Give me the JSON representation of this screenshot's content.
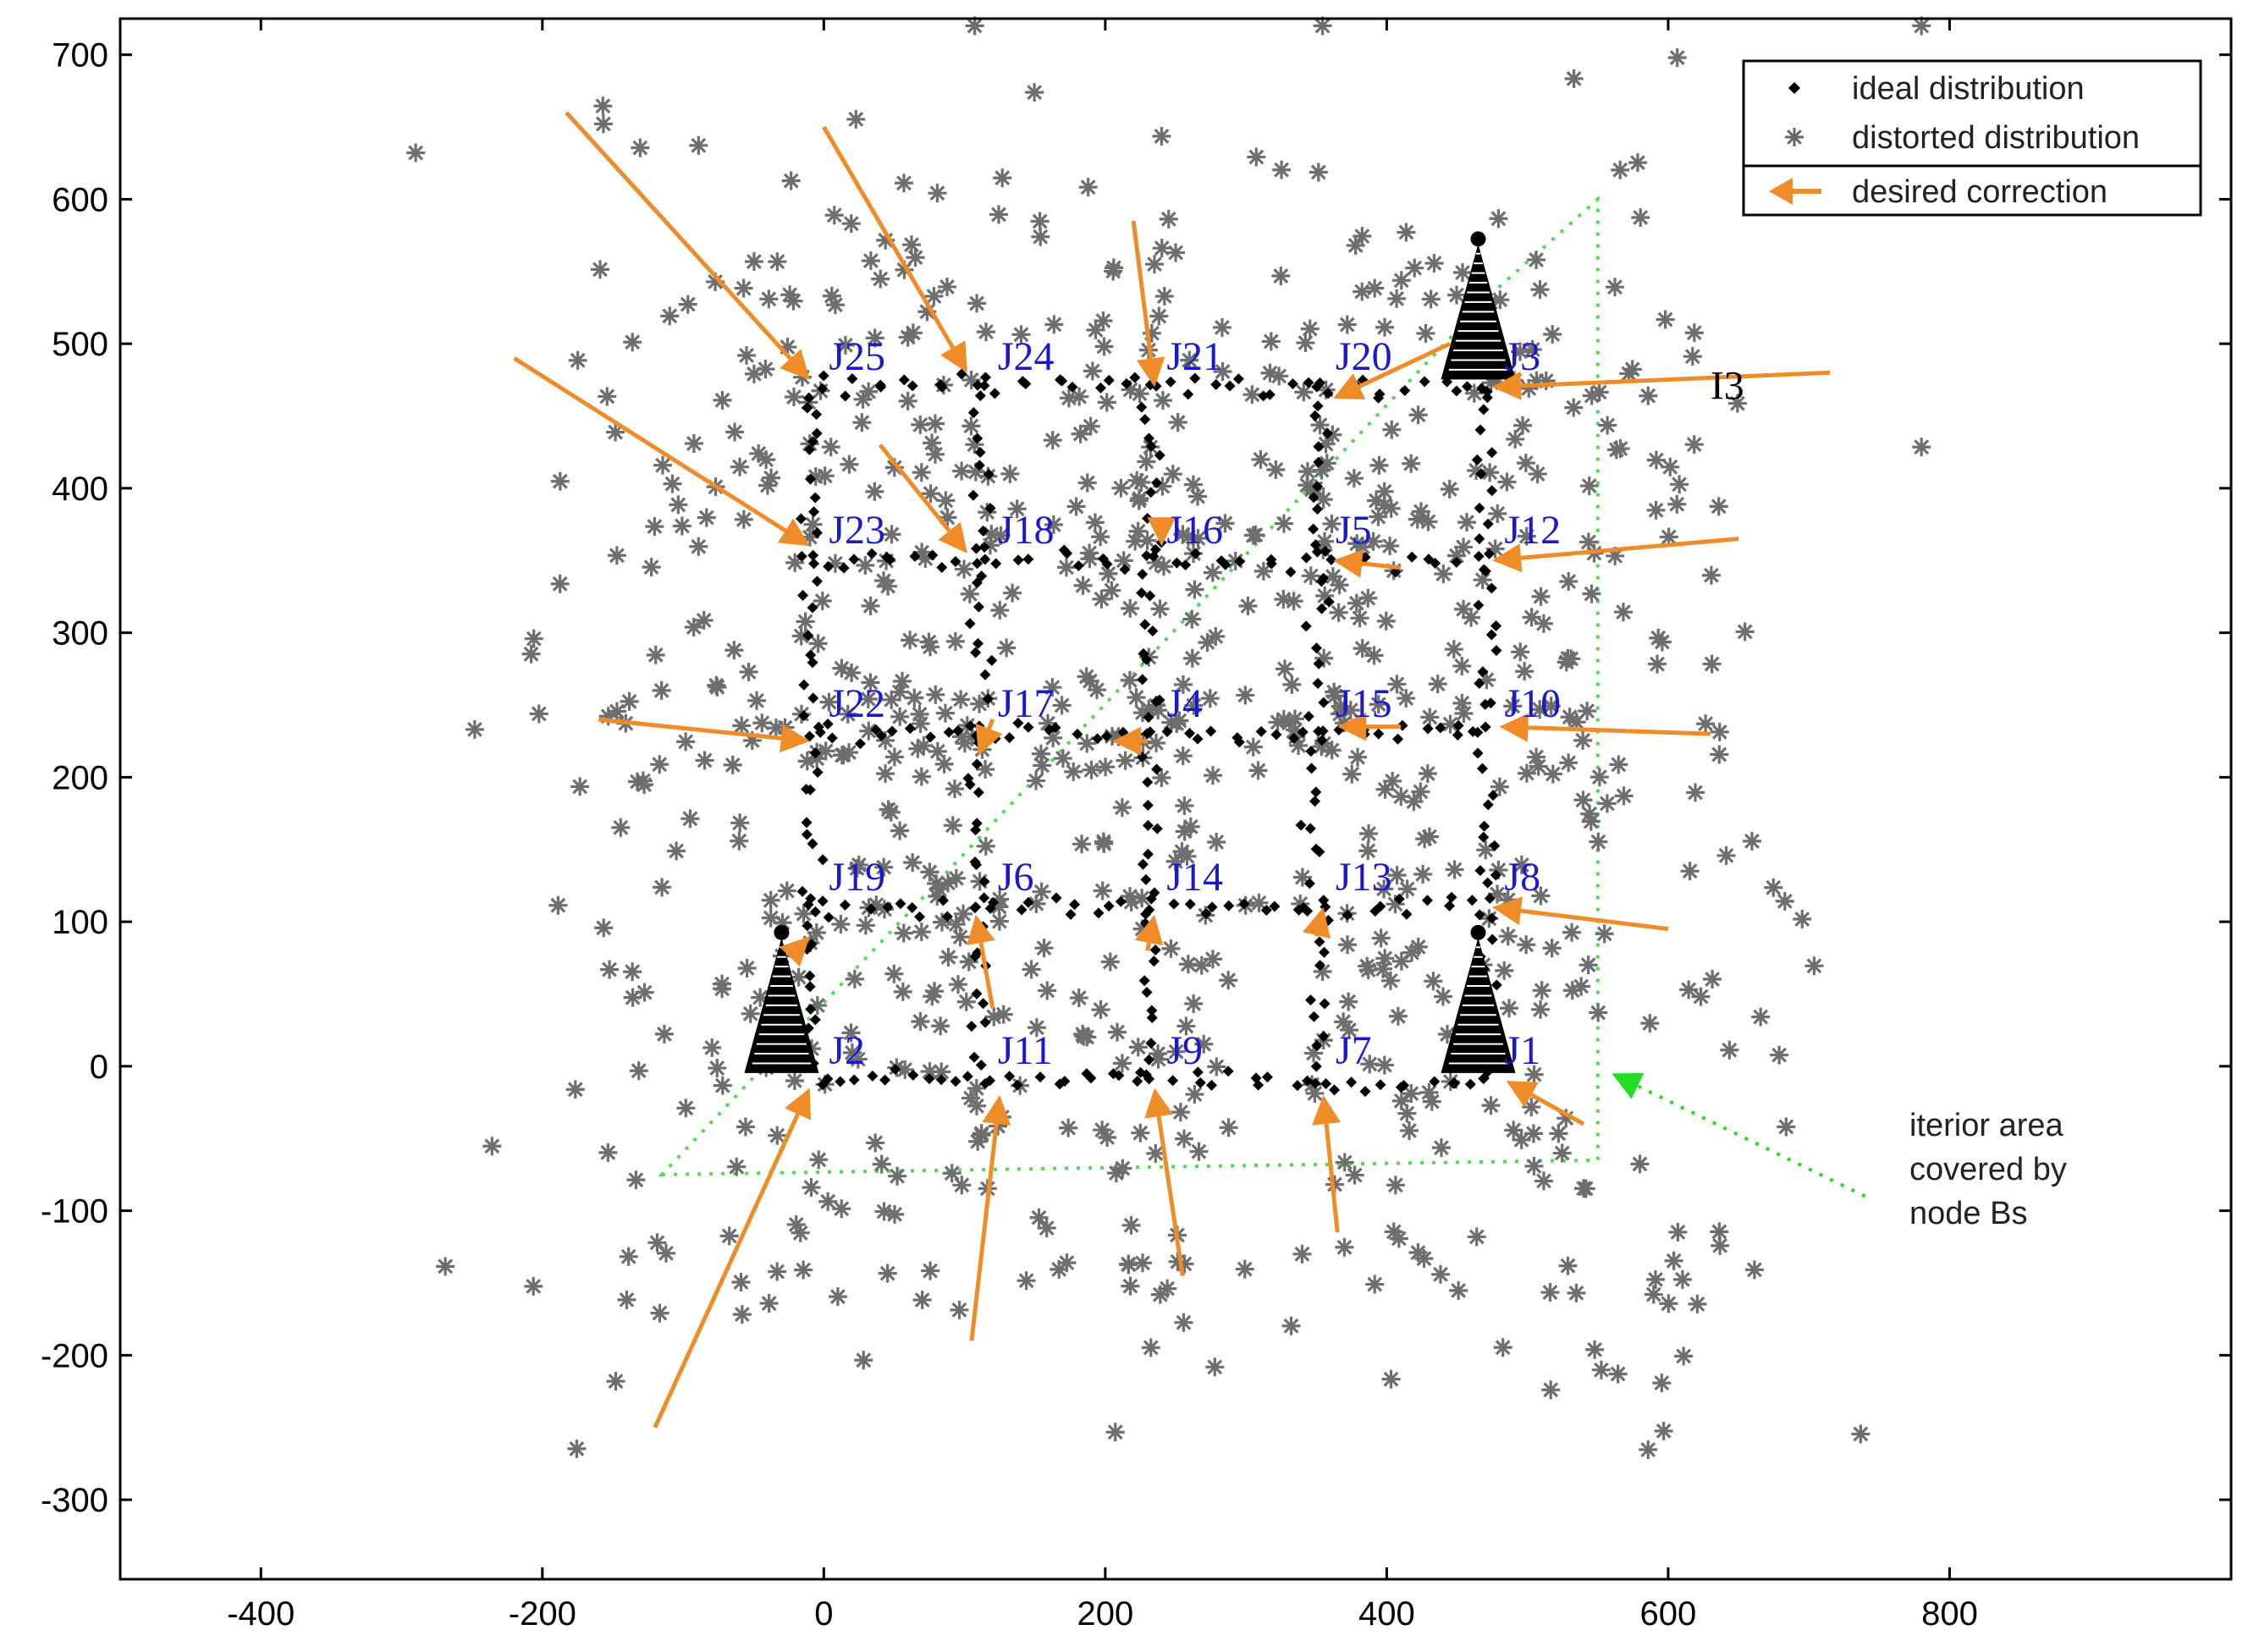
{
  "chart_data": {
    "type": "scatter",
    "title": "",
    "xlabel": "",
    "ylabel": "",
    "xlim": [
      -500,
      1000
    ],
    "ylim": [
      -355,
      725
    ],
    "x_ticks": [
      -400,
      -200,
      0,
      200,
      400,
      600,
      800
    ],
    "y_ticks": [
      -300,
      -200,
      -100,
      0,
      100,
      200,
      300,
      400,
      500,
      600,
      700
    ],
    "grid": false,
    "legend": {
      "placement": "top-right",
      "entries": [
        {
          "label": "ideal distribution",
          "marker": "diamond",
          "color": "#000000"
        },
        {
          "label": "distorted distribution",
          "marker": "asterisk",
          "color": "#666666"
        },
        {
          "label": "desired correction",
          "marker": "arrow",
          "color": "#f08c28"
        }
      ]
    },
    "ideal_grid": {
      "x_lines": [
        -10,
        110,
        230,
        350,
        470
      ],
      "y_lines": [
        -10,
        110,
        230,
        350,
        470
      ],
      "x_range": [
        -10,
        470
      ],
      "y_range": [
        -10,
        470
      ]
    },
    "towers": [
      {
        "x": -30,
        "y": 0
      },
      {
        "x": 465,
        "y": 0
      },
      {
        "x": 465,
        "y": 480
      }
    ],
    "junctions": [
      {
        "label": "J25",
        "x": 0,
        "y": 490
      },
      {
        "label": "J24",
        "x": 120,
        "y": 490
      },
      {
        "label": "J21",
        "x": 240,
        "y": 490
      },
      {
        "label": "J20",
        "x": 360,
        "y": 490
      },
      {
        "label": "J3",
        "x": 480,
        "y": 490
      },
      {
        "label": "J23",
        "x": 0,
        "y": 370
      },
      {
        "label": "J18",
        "x": 120,
        "y": 370
      },
      {
        "label": "J16",
        "x": 240,
        "y": 370
      },
      {
        "label": "J5",
        "x": 360,
        "y": 370
      },
      {
        "label": "J12",
        "x": 480,
        "y": 370
      },
      {
        "label": "J22",
        "x": 0,
        "y": 250
      },
      {
        "label": "J17",
        "x": 120,
        "y": 250
      },
      {
        "label": "J4",
        "x": 240,
        "y": 250
      },
      {
        "label": "J15",
        "x": 360,
        "y": 250
      },
      {
        "label": "J10",
        "x": 480,
        "y": 250
      },
      {
        "label": "J19",
        "x": 0,
        "y": 130
      },
      {
        "label": "J6",
        "x": 120,
        "y": 130
      },
      {
        "label": "J14",
        "x": 240,
        "y": 130
      },
      {
        "label": "J13",
        "x": 360,
        "y": 130
      },
      {
        "label": "J8",
        "x": 480,
        "y": 130
      },
      {
        "label": "J2",
        "x": 0,
        "y": 10
      },
      {
        "label": "J11",
        "x": 120,
        "y": 10
      },
      {
        "label": "J9",
        "x": 240,
        "y": 10
      },
      {
        "label": "J7",
        "x": 360,
        "y": 10
      },
      {
        "label": "J1",
        "x": 480,
        "y": 10
      }
    ],
    "extra_label": {
      "label": "I3",
      "x": 630,
      "y": 470
    },
    "corrections": [
      {
        "from": [
          -183,
          660
        ],
        "to": [
          -10,
          475
        ]
      },
      {
        "from": [
          0,
          650
        ],
        "to": [
          102,
          480
        ]
      },
      {
        "from": [
          220,
          585
        ],
        "to": [
          235,
          470
        ]
      },
      {
        "from": [
          445,
          500
        ],
        "to": [
          362,
          462
        ]
      },
      {
        "from": [
          715,
          480
        ],
        "to": [
          475,
          470
        ]
      },
      {
        "from": [
          -220,
          490
        ],
        "to": [
          -10,
          360
        ]
      },
      {
        "from": [
          40,
          430
        ],
        "to": [
          102,
          355
        ]
      },
      {
        "from": [
          240,
          380
        ],
        "to": [
          240,
          360
        ]
      },
      {
        "from": [
          410,
          345
        ],
        "to": [
          362,
          350
        ]
      },
      {
        "from": [
          650,
          365
        ],
        "to": [
          475,
          350
        ]
      },
      {
        "from": [
          -160,
          240
        ],
        "to": [
          -10,
          225
        ]
      },
      {
        "from": [
          120,
          240
        ],
        "to": [
          110,
          215
        ]
      },
      {
        "from": [
          230,
          225
        ],
        "to": [
          205,
          225
        ]
      },
      {
        "from": [
          410,
          235
        ],
        "to": [
          365,
          235
        ]
      },
      {
        "from": [
          630,
          230
        ],
        "to": [
          480,
          235
        ]
      },
      {
        "from": [
          -20,
          80
        ],
        "to": [
          -10,
          90
        ]
      },
      {
        "from": [
          120,
          40
        ],
        "to": [
          108,
          105
        ]
      },
      {
        "from": [
          230,
          80
        ],
        "to": [
          235,
          105
        ]
      },
      {
        "from": [
          350,
          90
        ],
        "to": [
          355,
          110
        ]
      },
      {
        "from": [
          600,
          95
        ],
        "to": [
          475,
          110
        ]
      },
      {
        "from": [
          -120,
          -250
        ],
        "to": [
          -10,
          -15
        ]
      },
      {
        "from": [
          105,
          -190
        ],
        "to": [
          125,
          -20
        ]
      },
      {
        "from": [
          255,
          -145
        ],
        "to": [
          235,
          -15
        ]
      },
      {
        "from": [
          365,
          -115
        ],
        "to": [
          355,
          -20
        ]
      },
      {
        "from": [
          540,
          -40
        ],
        "to": [
          485,
          -10
        ]
      }
    ],
    "interior_area": {
      "polygon": [
        [
          -115,
          -75
        ],
        [
          550,
          -65
        ],
        [
          550,
          600
        ],
        [
          475,
          535
        ]
      ],
      "label": "iterior area\ncovered by\nnode Bs",
      "label_lines": [
        "iterior area",
        "covered by",
        "node Bs"
      ],
      "pointer": {
        "from": [
          740,
          -90
        ],
        "to": [
          560,
          -5
        ]
      }
    },
    "distorted_seed": 7,
    "distorted_count": 900
  }
}
